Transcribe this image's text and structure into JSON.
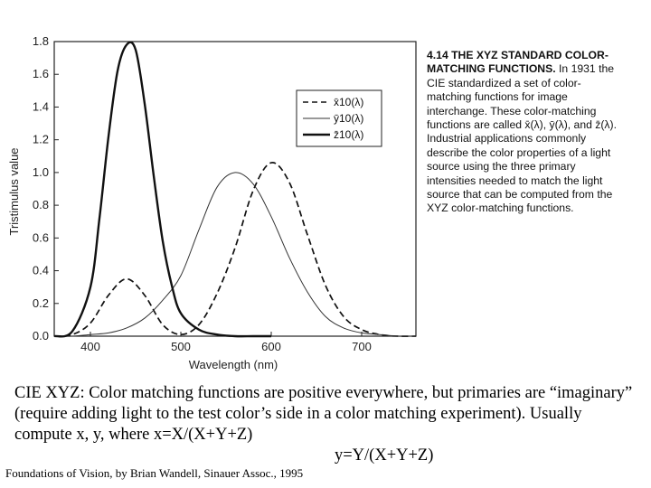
{
  "chart_data": {
    "type": "line",
    "title": "",
    "xlabel": "Wavelength (nm)",
    "ylabel": "Tristimulus value",
    "xlim": [
      360,
      760
    ],
    "ylim": [
      0,
      1.8
    ],
    "xticks": [
      400,
      500,
      600,
      700
    ],
    "xtick_labels": [
      "400",
      "500",
      "600",
      "700"
    ],
    "yticks": [
      0,
      0.2,
      0.4,
      0.6,
      0.8,
      1.0,
      1.2,
      1.4,
      1.6,
      1.8
    ],
    "ytick_labels": [
      "0.0",
      "0.2",
      "0.4",
      "0.6",
      "0.8",
      "1.0",
      "1.2",
      "1.4",
      "1.6",
      "1.8"
    ],
    "grid": false,
    "legend_position": "top-right",
    "series": [
      {
        "name": "x̄10(λ)",
        "style": "dashed",
        "x": [
          360,
          380,
          400,
          420,
          440,
          460,
          480,
          500,
          520,
          540,
          560,
          580,
          600,
          620,
          640,
          660,
          680,
          700,
          720,
          740,
          760
        ],
        "y": [
          0.0,
          0.01,
          0.08,
          0.25,
          0.35,
          0.25,
          0.07,
          0.01,
          0.07,
          0.26,
          0.54,
          0.89,
          1.06,
          0.94,
          0.62,
          0.31,
          0.12,
          0.04,
          0.01,
          0.0,
          0.0
        ]
      },
      {
        "name": "ȳ10(λ)",
        "style": "thin-solid",
        "x": [
          360,
          380,
          400,
          420,
          440,
          460,
          480,
          500,
          520,
          540,
          560,
          580,
          600,
          620,
          640,
          660,
          680,
          700,
          720,
          740,
          760
        ],
        "y": [
          0.0,
          0.0,
          0.01,
          0.02,
          0.05,
          0.11,
          0.22,
          0.37,
          0.65,
          0.91,
          1.0,
          0.93,
          0.73,
          0.48,
          0.27,
          0.12,
          0.05,
          0.02,
          0.01,
          0.0,
          0.0
        ]
      },
      {
        "name": "z̄10(λ)",
        "style": "thick-solid",
        "x": [
          360,
          380,
          400,
          410,
          420,
          430,
          440,
          450,
          460,
          470,
          480,
          490,
          500,
          520,
          540,
          560,
          580,
          600
        ],
        "y": [
          0.0,
          0.03,
          0.3,
          0.72,
          1.22,
          1.62,
          1.78,
          1.75,
          1.42,
          0.98,
          0.58,
          0.31,
          0.14,
          0.04,
          0.01,
          0.0,
          0.0,
          0.0
        ]
      }
    ]
  },
  "figure_caption": {
    "title": "4.14 THE XYZ STANDARD COLOR-MATCHING FUNCTIONS.",
    "body": "In 1931 the CIE standardized a set of color-matching functions for image interchange. These color-matching functions are called x̄(λ), ȳ(λ), and z̄(λ). Industrial applications commonly describe the color properties of a light source using the three primary intensities needed to match the light source that can be computed from the XYZ color-matching functions."
  },
  "slide_text": {
    "line1": "CIE XYZ: Color matching functions are positive everywhere, but primaries are “imaginary” (require adding light to the test color’s side in a color matching experiment).  Usually compute x, y, where",
    "formula_x": "x=X/(X+Y+Z)",
    "formula_y": "y=Y/(X+Y+Z)"
  },
  "source_credit": "Foundations of Vision, by Brian Wandell, Sinauer Assoc., 1995"
}
